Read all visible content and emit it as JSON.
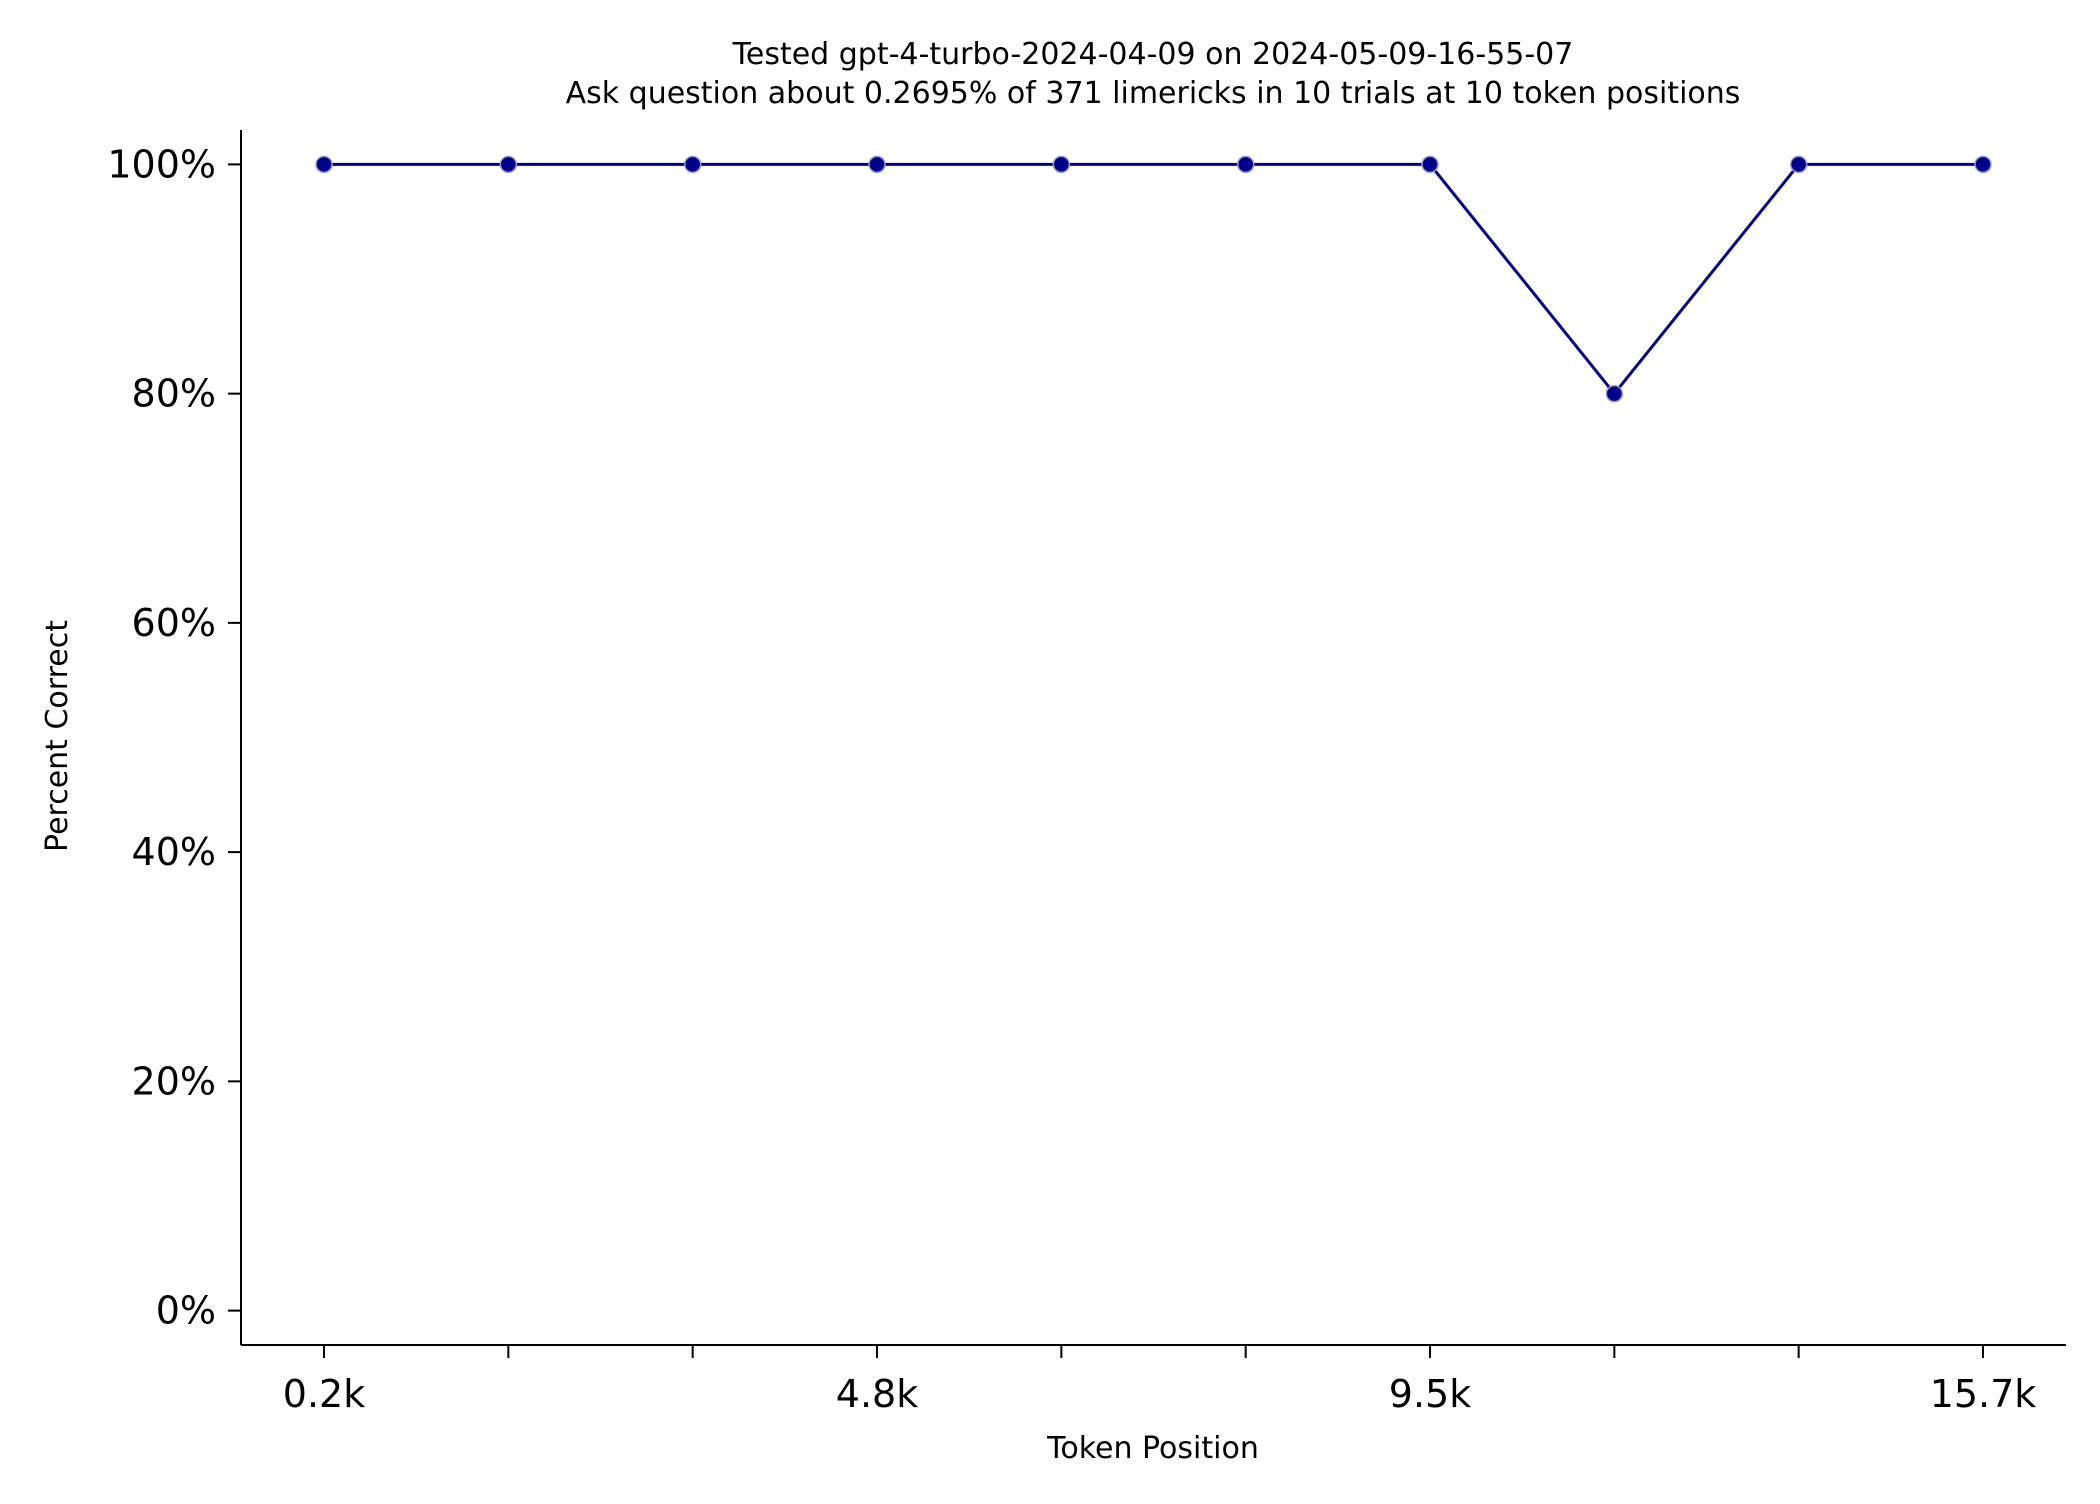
{
  "chart_data": {
    "type": "line",
    "title": "Tested gpt-4-turbo-2024-04-09 on 2024-05-09-16-55-07",
    "subtitle": "Ask question about 0.2695% of 371 limericks in 10 trials at 10 token positions",
    "xlabel": "Token Position",
    "ylabel": "Percent Correct",
    "x_tick_labels": [
      "0.2k",
      "",
      "",
      "4.8k",
      "",
      "",
      "9.5k",
      "",
      "",
      "15.7k"
    ],
    "y_ticks": [
      0,
      20,
      40,
      60,
      80,
      100
    ],
    "y_tick_labels": [
      "0%",
      "20%",
      "40%",
      "60%",
      "80%",
      "100%"
    ],
    "ylim": [
      -3,
      103
    ],
    "grid": false,
    "series": [
      {
        "values": [
          100,
          100,
          100,
          100,
          100,
          100,
          100,
          80,
          100,
          100
        ],
        "color": "#00008b"
      }
    ]
  }
}
